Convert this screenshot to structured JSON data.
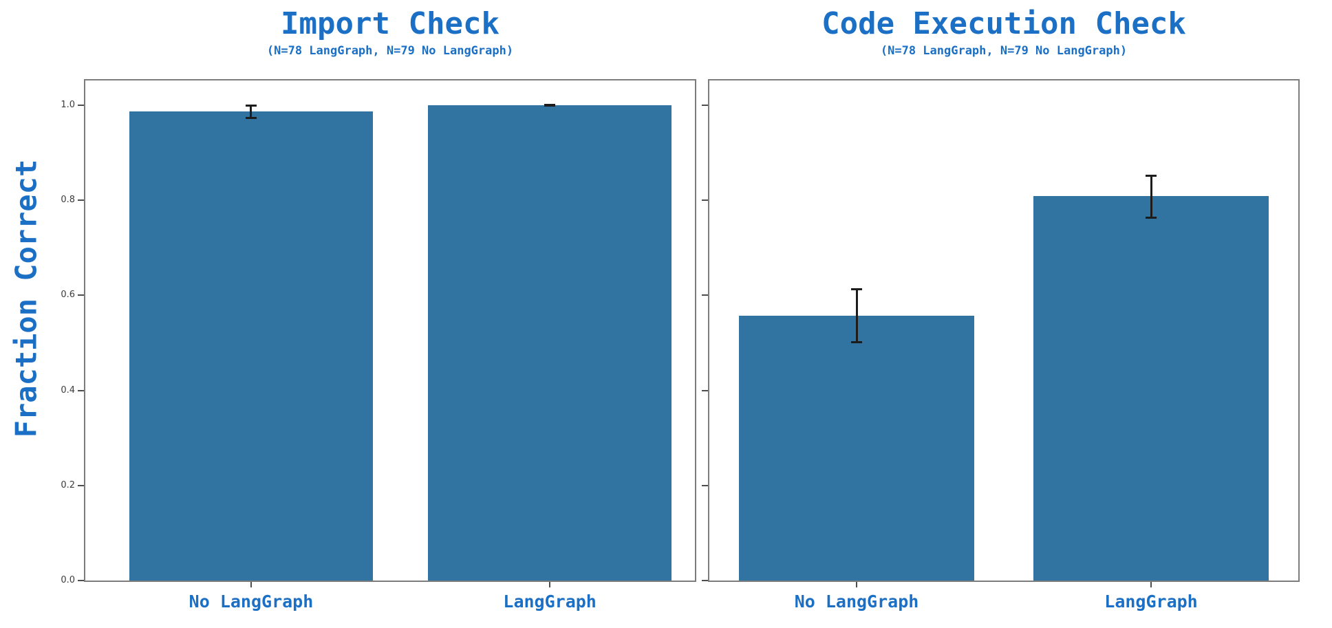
{
  "figure": {
    "ylabel": "Fraction Correct",
    "accent_color": "#1b6fc4",
    "bar_color": "#3274a1",
    "error_bar_color": "#1c1c1c",
    "spine_color": "#7c7c7c"
  },
  "chart_data": [
    {
      "type": "bar",
      "title": "Import Check",
      "subtitle": "(N=78 LangGraph, N=79 No LangGraph)",
      "categories": [
        "No LangGraph",
        "LangGraph"
      ],
      "values": [
        0.987,
        1.0
      ],
      "error_low": [
        0.973,
        0.999
      ],
      "error_high": [
        1.0,
        1.001
      ],
      "ylabel": "Fraction Correct",
      "xlabel": "",
      "yticks": [
        0.0,
        0.2,
        0.4,
        0.6,
        0.8,
        1.0
      ],
      "ytick_labels": [
        "0.0",
        "0.2",
        "0.4",
        "0.6",
        "0.8",
        "1.0"
      ],
      "ylim": [
        0,
        1.052
      ],
      "grid": false,
      "legend": "none",
      "ytick_labels_visible": true
    },
    {
      "type": "bar",
      "title": "Code Execution Check",
      "subtitle": "(N=78 LangGraph, N=79 No LangGraph)",
      "categories": [
        "No LangGraph",
        "LangGraph"
      ],
      "values": [
        0.557,
        0.809
      ],
      "error_low": [
        0.501,
        0.763
      ],
      "error_high": [
        0.614,
        0.853
      ],
      "ylabel": "Fraction Correct",
      "xlabel": "",
      "yticks": [
        0.0,
        0.2,
        0.4,
        0.6,
        0.8,
        1.0
      ],
      "ytick_labels": [
        "0.0",
        "0.2",
        "0.4",
        "0.6",
        "0.8",
        "1.0"
      ],
      "ylim": [
        0,
        1.052
      ],
      "grid": false,
      "legend": "none",
      "ytick_labels_visible": false
    }
  ]
}
